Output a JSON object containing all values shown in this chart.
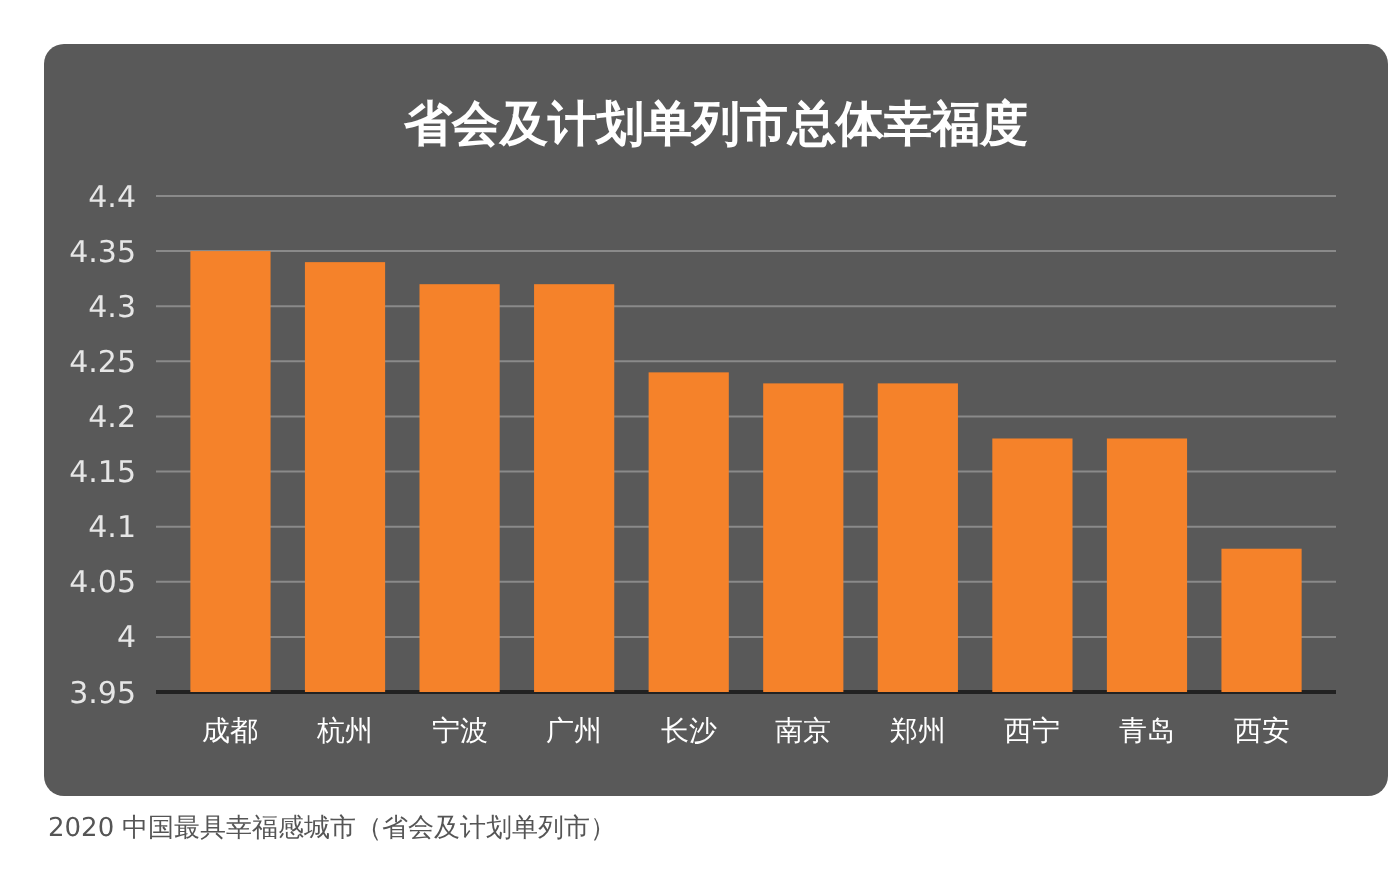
{
  "chart_data": {
    "type": "bar",
    "title": "省会及计划单列市总体幸福度",
    "categories": [
      "成都",
      "杭州",
      "宁波",
      "广州",
      "长沙",
      "南京",
      "郑州",
      "西宁",
      "青岛",
      "西安"
    ],
    "values": [
      4.35,
      4.34,
      4.32,
      4.32,
      4.24,
      4.23,
      4.23,
      4.18,
      4.18,
      4.08
    ],
    "color": "#f5822a",
    "ylim": [
      3.95,
      4.4
    ],
    "yticks": [
      3.95,
      4,
      4.05,
      4.1,
      4.15,
      4.2,
      4.25,
      4.3,
      4.35,
      4.4
    ],
    "grid": "y",
    "annotations": [
      "2020 中国最具幸福感城市（省会及计划单列市）"
    ]
  }
}
